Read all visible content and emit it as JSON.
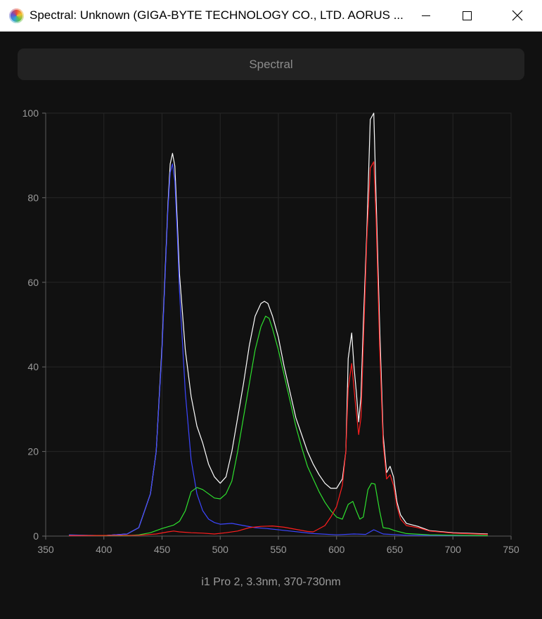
{
  "window": {
    "title": "Spectral: Unknown (GIGA-BYTE TECHNOLOGY CO., LTD. AORUS ...",
    "minimize_icon": "minimize-icon",
    "maximize_icon": "maximize-icon",
    "close_icon": "close-icon",
    "app_icon": "spectral-app-icon"
  },
  "toolbar": {
    "spectral_label": "Spectral"
  },
  "caption": "i1 Pro 2, 3.3nm, 370-730nm",
  "chart_data": {
    "type": "line",
    "title": "",
    "xlabel": "",
    "ylabel": "",
    "xlim": [
      350,
      750
    ],
    "ylim": [
      0,
      100
    ],
    "xticks": [
      "350",
      "400",
      "450",
      "500",
      "550",
      "600",
      "650",
      "700",
      "750"
    ],
    "yticks": [
      "0",
      "20",
      "40",
      "60",
      "80",
      "100"
    ],
    "grid": true,
    "legend": "none",
    "series": [
      {
        "color": "#ffffff",
        "points": [
          [
            370,
            0.2
          ],
          [
            400,
            0.1
          ],
          [
            420,
            0.5
          ],
          [
            430,
            2
          ],
          [
            440,
            10
          ],
          [
            445,
            20
          ],
          [
            450,
            45
          ],
          [
            455,
            78
          ],
          [
            457,
            88
          ],
          [
            459,
            90.5
          ],
          [
            461,
            87.5
          ],
          [
            463,
            75
          ],
          [
            465,
            62
          ],
          [
            470,
            44
          ],
          [
            475,
            33
          ],
          [
            480,
            26
          ],
          [
            485,
            22
          ],
          [
            490,
            17
          ],
          [
            495,
            14
          ],
          [
            500,
            12.5
          ],
          [
            505,
            14
          ],
          [
            510,
            20
          ],
          [
            515,
            28
          ],
          [
            520,
            36
          ],
          [
            525,
            45
          ],
          [
            530,
            52
          ],
          [
            535,
            55
          ],
          [
            538,
            55.5
          ],
          [
            541,
            55
          ],
          [
            545,
            52
          ],
          [
            550,
            47
          ],
          [
            555,
            40
          ],
          [
            560,
            34
          ],
          [
            565,
            28
          ],
          [
            570,
            24
          ],
          [
            575,
            20
          ],
          [
            580,
            17
          ],
          [
            585,
            14.5
          ],
          [
            590,
            12.5
          ],
          [
            595,
            11.3
          ],
          [
            600,
            11.3
          ],
          [
            605,
            13.5
          ],
          [
            608,
            20
          ],
          [
            610,
            42
          ],
          [
            613,
            48
          ],
          [
            615,
            40
          ],
          [
            617,
            34
          ],
          [
            619,
            27
          ],
          [
            621,
            33
          ],
          [
            623,
            50
          ],
          [
            626,
            72
          ],
          [
            629,
            98.5
          ],
          [
            632,
            100
          ],
          [
            634,
            80
          ],
          [
            637,
            50
          ],
          [
            640,
            24
          ],
          [
            643,
            15
          ],
          [
            646,
            16.5
          ],
          [
            649,
            14
          ],
          [
            652,
            8
          ],
          [
            655,
            5
          ],
          [
            660,
            3
          ],
          [
            670,
            2.3
          ],
          [
            680,
            1.3
          ],
          [
            700,
            0.8
          ],
          [
            730,
            0.5
          ]
        ]
      },
      {
        "color": "#3c46ff",
        "points": [
          [
            370,
            0.3
          ],
          [
            400,
            0.1
          ],
          [
            420,
            0.5
          ],
          [
            430,
            2
          ],
          [
            440,
            10
          ],
          [
            445,
            20
          ],
          [
            450,
            44
          ],
          [
            455,
            77
          ],
          [
            457,
            86
          ],
          [
            459,
            88
          ],
          [
            461,
            84
          ],
          [
            463,
            72
          ],
          [
            465,
            58
          ],
          [
            470,
            34
          ],
          [
            475,
            18
          ],
          [
            480,
            10
          ],
          [
            485,
            6
          ],
          [
            490,
            4
          ],
          [
            495,
            3.2
          ],
          [
            500,
            2.8
          ],
          [
            510,
            3
          ],
          [
            520,
            2.5
          ],
          [
            530,
            2
          ],
          [
            540,
            1.8
          ],
          [
            560,
            1.2
          ],
          [
            580,
            0.6
          ],
          [
            600,
            0.3
          ],
          [
            615,
            0.5
          ],
          [
            625,
            0.4
          ],
          [
            632,
            1.5
          ],
          [
            640,
            0.5
          ],
          [
            660,
            0.2
          ],
          [
            730,
            0.1
          ]
        ]
      },
      {
        "color": "#2ee02e",
        "points": [
          [
            370,
            0.1
          ],
          [
            420,
            0.1
          ],
          [
            430,
            0.3
          ],
          [
            440,
            0.8
          ],
          [
            450,
            1.8
          ],
          [
            460,
            2.6
          ],
          [
            465,
            3.5
          ],
          [
            470,
            6
          ],
          [
            475,
            10.5
          ],
          [
            480,
            11.5
          ],
          [
            485,
            11
          ],
          [
            490,
            10
          ],
          [
            495,
            9
          ],
          [
            500,
            8.8
          ],
          [
            505,
            10
          ],
          [
            510,
            13
          ],
          [
            515,
            20
          ],
          [
            520,
            28
          ],
          [
            525,
            36
          ],
          [
            530,
            44
          ],
          [
            535,
            49.5
          ],
          [
            539,
            52
          ],
          [
            542,
            51.5
          ],
          [
            545,
            49
          ],
          [
            550,
            44
          ],
          [
            555,
            38
          ],
          [
            560,
            32
          ],
          [
            565,
            26
          ],
          [
            570,
            21
          ],
          [
            575,
            16.5
          ],
          [
            580,
            13.5
          ],
          [
            585,
            10.5
          ],
          [
            590,
            8
          ],
          [
            595,
            6
          ],
          [
            600,
            4.5
          ],
          [
            605,
            4
          ],
          [
            610,
            7.5
          ],
          [
            614,
            8.2
          ],
          [
            617,
            6
          ],
          [
            620,
            4
          ],
          [
            623,
            4.5
          ],
          [
            627,
            11
          ],
          [
            630,
            12.5
          ],
          [
            633,
            12.3
          ],
          [
            637,
            6
          ],
          [
            640,
            2
          ],
          [
            645,
            1.8
          ],
          [
            650,
            1.3
          ],
          [
            660,
            0.6
          ],
          [
            680,
            0.3
          ],
          [
            730,
            0.1
          ]
        ]
      },
      {
        "color": "#ff1e1e",
        "points": [
          [
            370,
            0.1
          ],
          [
            430,
            0.2
          ],
          [
            445,
            0.5
          ],
          [
            455,
            1
          ],
          [
            460,
            1.2
          ],
          [
            465,
            1
          ],
          [
            475,
            0.8
          ],
          [
            485,
            0.7
          ],
          [
            495,
            0.5
          ],
          [
            505,
            0.8
          ],
          [
            515,
            1.2
          ],
          [
            525,
            2
          ],
          [
            535,
            2.3
          ],
          [
            545,
            2.4
          ],
          [
            555,
            2.1
          ],
          [
            565,
            1.6
          ],
          [
            575,
            1.1
          ],
          [
            580,
            1
          ],
          [
            590,
            2.5
          ],
          [
            595,
            4.5
          ],
          [
            600,
            7
          ],
          [
            605,
            12
          ],
          [
            608,
            20
          ],
          [
            610,
            35
          ],
          [
            613,
            40.8
          ],
          [
            616,
            32
          ],
          [
            619,
            24
          ],
          [
            621,
            28
          ],
          [
            623,
            45
          ],
          [
            626,
            70
          ],
          [
            629,
            87
          ],
          [
            632,
            88.5
          ],
          [
            634,
            75
          ],
          [
            637,
            45
          ],
          [
            640,
            22
          ],
          [
            643,
            13.5
          ],
          [
            646,
            14.5
          ],
          [
            649,
            12
          ],
          [
            652,
            7
          ],
          [
            655,
            4
          ],
          [
            660,
            2.5
          ],
          [
            670,
            2
          ],
          [
            680,
            1.2
          ],
          [
            700,
            0.7
          ],
          [
            730,
            0.4
          ]
        ]
      }
    ]
  }
}
